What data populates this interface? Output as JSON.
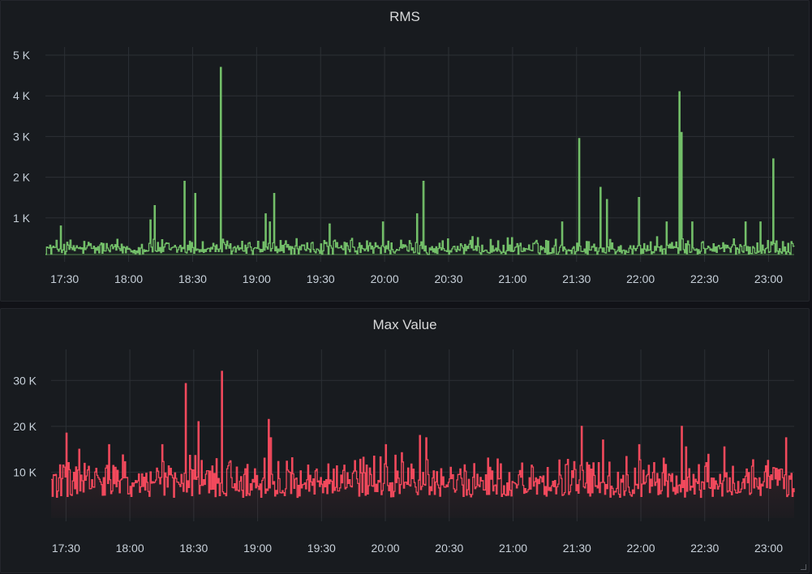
{
  "chart_data": [
    {
      "type": "line",
      "title": "RMS",
      "color": "#73bf69",
      "x_ticks": [
        "17:30",
        "18:00",
        "18:30",
        "19:00",
        "19:30",
        "20:00",
        "20:30",
        "21:00",
        "21:30",
        "22:00",
        "22:30",
        "23:00"
      ],
      "y_ticks": [
        "1 K",
        "2 K",
        "3 K",
        "4 K",
        "5 K"
      ],
      "x_range": [
        "17:21",
        "23:12"
      ],
      "ylim": [
        0,
        5000
      ],
      "grid": true,
      "baseline": 100,
      "noise": [
        100,
        550
      ],
      "spikes": [
        [
          "17:28",
          800
        ],
        [
          "18:10",
          950
        ],
        [
          "18:12",
          1300
        ],
        [
          "18:26",
          1900
        ],
        [
          "18:31",
          1600
        ],
        [
          "18:43",
          4700
        ],
        [
          "19:04",
          1100
        ],
        [
          "19:06",
          900
        ],
        [
          "19:08",
          1600
        ],
        [
          "19:34",
          850
        ],
        [
          "19:59",
          900
        ],
        [
          "20:15",
          1100
        ],
        [
          "20:18",
          1900
        ],
        [
          "21:23",
          900
        ],
        [
          "21:31",
          2950
        ],
        [
          "21:41",
          1750
        ],
        [
          "21:44",
          1450
        ],
        [
          "21:59",
          1500
        ],
        [
          "22:12",
          900
        ],
        [
          "22:18",
          4100
        ],
        [
          "22:19",
          3100
        ],
        [
          "22:24",
          900
        ],
        [
          "22:49",
          900
        ],
        [
          "22:56",
          900
        ],
        [
          "23:02",
          2450
        ]
      ]
    },
    {
      "type": "line",
      "title": "Max Value",
      "color": "#f2495c",
      "x_ticks": [
        "17:30",
        "18:00",
        "18:30",
        "19:00",
        "19:30",
        "20:00",
        "20:30",
        "21:00",
        "21:30",
        "22:00",
        "22:30",
        "23:00"
      ],
      "y_ticks": [
        "10 K",
        "20 K",
        "30 K"
      ],
      "x_range": [
        "17:23",
        "23:12"
      ],
      "ylim": [
        0,
        35000
      ],
      "grid": true,
      "baseline": 7500,
      "noise": [
        4500,
        14500
      ],
      "spikes": [
        [
          "17:30",
          18500
        ],
        [
          "17:36",
          15000
        ],
        [
          "17:50",
          16000
        ],
        [
          "18:15",
          16000
        ],
        [
          "18:26",
          29300
        ],
        [
          "18:32",
          21000
        ],
        [
          "18:43",
          32000
        ],
        [
          "19:05",
          21500
        ],
        [
          "19:06",
          17500
        ],
        [
          "20:00",
          16000
        ],
        [
          "20:16",
          18000
        ],
        [
          "20:19",
          17500
        ],
        [
          "21:32",
          20000
        ],
        [
          "21:42",
          17000
        ],
        [
          "21:59",
          16000
        ],
        [
          "22:19",
          20000
        ],
        [
          "22:21",
          15500
        ],
        [
          "22:39",
          15500
        ],
        [
          "23:08",
          17500
        ]
      ]
    }
  ]
}
